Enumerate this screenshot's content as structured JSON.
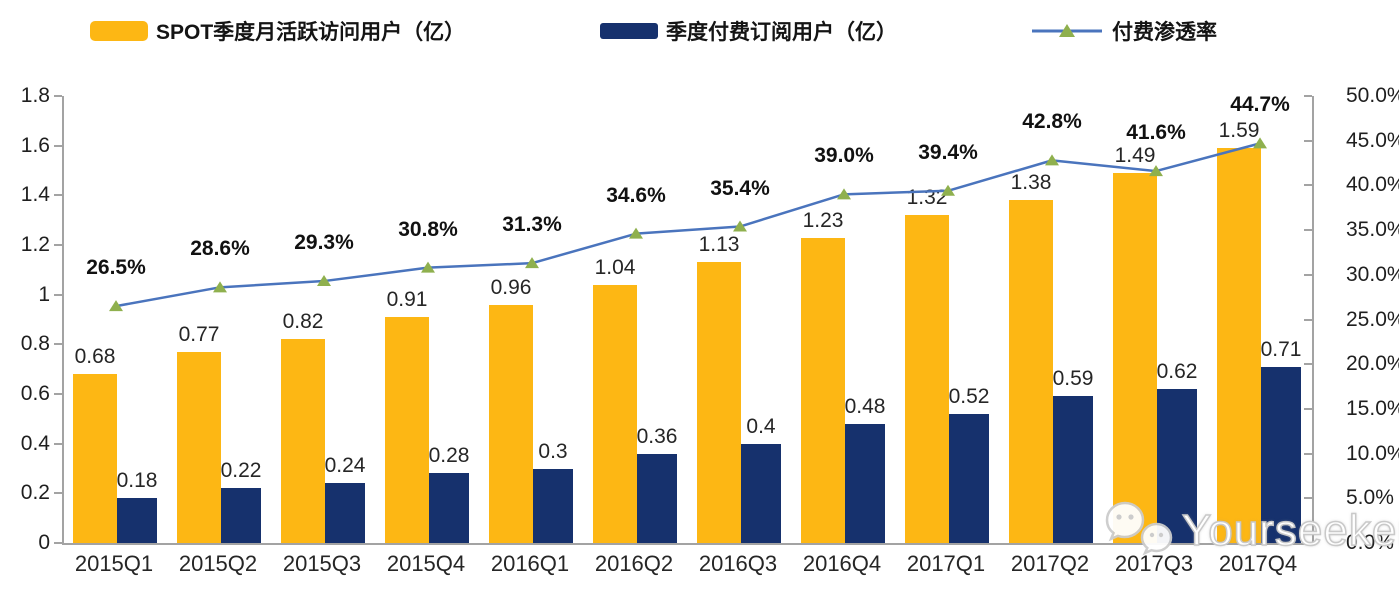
{
  "watermark": {
    "text": "Yourseeker",
    "icon": "wechat-icon"
  },
  "colors": {
    "mau_bar": "#FDB714",
    "paid_bar": "#16316D",
    "line": "#4A74BD",
    "marker": "#8FB04E",
    "axis": "#A3A3A3"
  },
  "chart_data": {
    "type": "bar",
    "subtype": "combo-bar-line",
    "title": "",
    "legend_position": "top",
    "grid": false,
    "categories": [
      "2015Q1",
      "2015Q2",
      "2015Q3",
      "2015Q4",
      "2016Q1",
      "2016Q2",
      "2016Q3",
      "2016Q4",
      "2017Q1",
      "2017Q2",
      "2017Q3",
      "2017Q4"
    ],
    "series": [
      {
        "name": "SPOT季度月活跃访问用户（亿）",
        "type": "bar",
        "axis": "left",
        "color": "#FDB714",
        "values": [
          0.68,
          0.77,
          0.82,
          0.91,
          0.96,
          1.04,
          1.13,
          1.23,
          1.32,
          1.38,
          1.49,
          1.59
        ],
        "labels": [
          "0.68",
          "0.77",
          "0.82",
          "0.91",
          "0.96",
          "1.04",
          "1.13",
          "1.23",
          "1.32",
          "1.38",
          "1.49",
          "1.59"
        ]
      },
      {
        "name": "季度付费订阅用户（亿）",
        "type": "bar",
        "axis": "left",
        "color": "#16316D",
        "values": [
          0.18,
          0.22,
          0.24,
          0.28,
          0.3,
          0.36,
          0.4,
          0.48,
          0.52,
          0.59,
          0.62,
          0.71
        ],
        "labels": [
          "0.18",
          "0.22",
          "0.24",
          "0.28",
          "0.3",
          "0.36",
          "0.4",
          "0.48",
          "0.52",
          "0.59",
          "0.62",
          "0.71"
        ]
      },
      {
        "name": "付费渗透率",
        "type": "line",
        "axis": "right",
        "color": "#4A74BD",
        "marker": "triangle",
        "marker_color": "#8FB04E",
        "values": [
          26.5,
          28.6,
          29.3,
          30.8,
          31.3,
          34.6,
          35.4,
          39.0,
          39.4,
          42.8,
          41.6,
          44.7
        ],
        "labels": [
          "26.5%",
          "28.6%",
          "29.3%",
          "30.8%",
          "31.3%",
          "34.6%",
          "35.4%",
          "39.0%",
          "39.4%",
          "42.8%",
          "41.6%",
          "44.7%"
        ]
      }
    ],
    "left_axis": {
      "min": 0,
      "max": 1.8,
      "step": 0.2,
      "ticks": [
        "1.8",
        "1.6",
        "1.4",
        "1.2",
        "1",
        "0.8",
        "0.6",
        "0.4",
        "0.2",
        "0"
      ]
    },
    "right_axis": {
      "min": 0,
      "max": 50,
      "step": 5,
      "ticks": [
        "50.0%",
        "45.0%",
        "40.0%",
        "35.0%",
        "30.0%",
        "25.0%",
        "20.0%",
        "15.0%",
        "10.0%",
        "5.0%",
        "0.0%"
      ]
    }
  }
}
